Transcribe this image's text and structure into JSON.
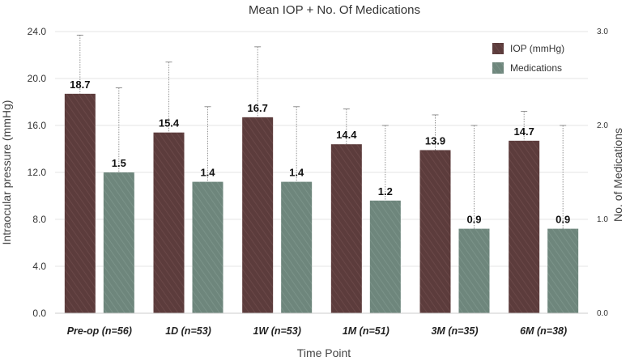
{
  "chart_data": {
    "type": "bar",
    "title": "Mean IOP + No. Of Medications",
    "xlabel": "Time Point",
    "ylabel": "Intraocular pressure (mmHg)",
    "y2label": "No. of Medications",
    "categories": [
      "Pre-op (n=56)",
      "1D (n=53)",
      "1W (n=53)",
      "1M (n=51)",
      "3M (n=35)",
      "6M (n=38)"
    ],
    "ylim": [
      0,
      24
    ],
    "y2lim": [
      0,
      3
    ],
    "yticks": [
      "0.0",
      "4.0",
      "8.0",
      "12.0",
      "16.0",
      "20.0",
      "24.0"
    ],
    "y2ticks": [
      "0.0",
      "1.0",
      "2.0",
      "3.0"
    ],
    "legend_position": "top-right",
    "grid": true,
    "series": [
      {
        "name": "IOP (mmHg)",
        "axis": "left",
        "color": "#5c3c3c",
        "values": [
          18.7,
          15.4,
          16.7,
          14.4,
          13.9,
          14.7
        ],
        "labels": [
          "18.7",
          "15.4",
          "16.7",
          "14.4",
          "13.9",
          "14.7"
        ],
        "error_upper": [
          23.7,
          21.4,
          22.7,
          17.4,
          16.9,
          17.2
        ]
      },
      {
        "name": "Medications",
        "axis": "right",
        "color": "#6e867c",
        "values": [
          1.5,
          1.4,
          1.4,
          1.2,
          0.9,
          0.9
        ],
        "labels": [
          "1.5",
          "1.4",
          "1.4",
          "1.2",
          "0.9",
          "0.9"
        ],
        "error_upper": [
          2.4,
          2.2,
          2.2,
          2.0,
          2.0,
          2.0
        ]
      }
    ]
  }
}
